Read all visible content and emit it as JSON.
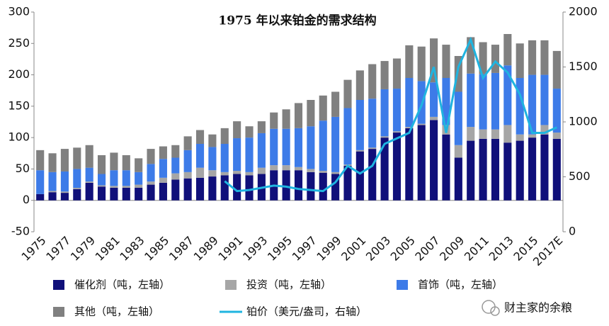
{
  "chart_data": {
    "type": "bar",
    "stacked": true,
    "title": "1975 年以来铂金的需求结构",
    "categories": [
      "1975",
      null,
      "1977",
      null,
      "1979",
      null,
      "1981",
      null,
      "1983",
      null,
      "1985",
      null,
      "1987",
      null,
      "1989",
      null,
      "1991",
      null,
      "1993",
      null,
      "1995",
      null,
      "1997",
      null,
      "1999",
      null,
      "2001",
      null,
      "2003",
      null,
      "2005",
      null,
      "2007",
      null,
      "2009",
      null,
      "2011",
      null,
      "2013",
      null,
      "2015",
      null,
      "2017E"
    ],
    "series": [
      {
        "name": "催化剂（吨，左轴）",
        "color": "#10107a",
        "values": [
          10,
          13,
          12,
          18,
          28,
          22,
          20,
          20,
          20,
          25,
          28,
          33,
          35,
          36,
          38,
          40,
          42,
          40,
          42,
          48,
          48,
          48,
          45,
          44,
          42,
          55,
          78,
          82,
          100,
          108,
          115,
          120,
          128,
          105,
          68,
          95,
          98,
          98,
          92,
          95,
          100,
          105,
          98
        ]
      },
      {
        "name": "投资（吨，左轴）",
        "color": "#a6a6a6",
        "values": [
          0,
          2,
          2,
          2,
          2,
          2,
          3,
          3,
          5,
          5,
          8,
          10,
          10,
          16,
          10,
          5,
          5,
          5,
          10,
          8,
          8,
          5,
          5,
          3,
          3,
          2,
          2,
          2,
          2,
          2,
          2,
          2,
          5,
          15,
          20,
          22,
          15,
          15,
          28,
          10,
          5,
          15,
          10
        ]
      },
      {
        "name": "首饰（吨，左轴）",
        "color": "#3d7be8",
        "values": [
          38,
          30,
          32,
          30,
          22,
          18,
          25,
          25,
          20,
          28,
          30,
          25,
          35,
          38,
          37,
          45,
          52,
          55,
          55,
          58,
          58,
          62,
          68,
          80,
          88,
          90,
          80,
          78,
          75,
          68,
          78,
          68,
          55,
          75,
          85,
          85,
          88,
          90,
          95,
          90,
          95,
          80,
          70
        ]
      },
      {
        "name": "其他（吨，左轴）",
        "color": "#808080",
        "values": [
          32,
          30,
          36,
          34,
          36,
          30,
          28,
          24,
          22,
          24,
          20,
          20,
          22,
          22,
          20,
          25,
          27,
          18,
          19,
          26,
          31,
          40,
          42,
          40,
          40,
          45,
          47,
          55,
          45,
          48,
          52,
          55,
          70,
          53,
          57,
          58,
          51,
          45,
          50,
          55,
          55,
          55,
          60
        ]
      },
      {
        "name": "铂价（美元/盎司，右轴）",
        "color": "#1fb4e0",
        "type": "line",
        "axis": "y2",
        "values": [
          null,
          null,
          null,
          null,
          null,
          null,
          null,
          null,
          null,
          null,
          null,
          null,
          null,
          null,
          null,
          460,
          370,
          380,
          400,
          420,
          410,
          390,
          380,
          370,
          450,
          600,
          530,
          600,
          800,
          850,
          900,
          1150,
          1500,
          900,
          1500,
          1750,
          1400,
          1550,
          1450,
          1250,
          900,
          900,
          950
        ]
      }
    ],
    "ylim": [
      -50,
      300
    ],
    "yticks": [
      -50,
      0,
      50,
      100,
      150,
      200,
      250,
      300
    ],
    "y2lim": [
      0,
      2000
    ],
    "y2ticks": [
      0,
      500,
      1000,
      1500,
      2000
    ],
    "legend": "bottom"
  },
  "watermark": "财主家的余粮"
}
